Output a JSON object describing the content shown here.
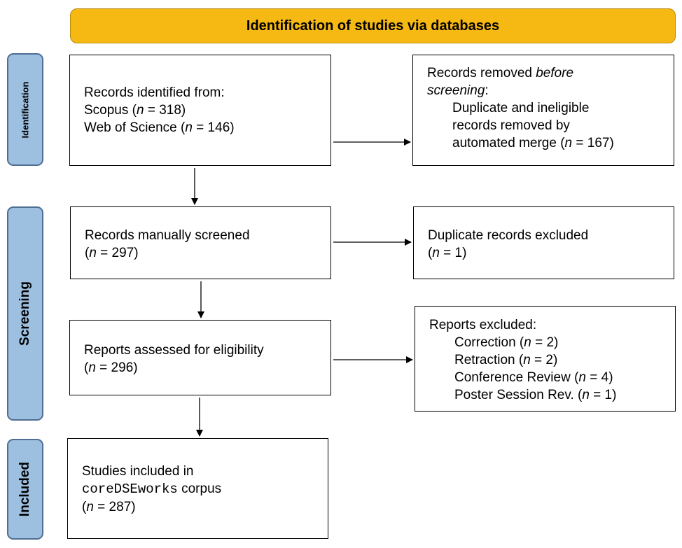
{
  "header": {
    "title": "Identification of studies via databases"
  },
  "phases": {
    "identification": "Identification",
    "screening": "Screening",
    "included": "Included"
  },
  "boxes": {
    "records_identified": {
      "title": "Records identified from:",
      "line1": "Scopus (",
      "line1_n": "n",
      "line1_rest": " = 318)",
      "line2": "Web of Science (",
      "line2_n": "n",
      "line2_rest": " = 146)"
    },
    "records_removed": {
      "line1_pre": "Records removed ",
      "line1_em": "before",
      "line2_em": "screening",
      "line2_post": ":",
      "line3": "Duplicate and ineligible",
      "line4": "records removed by",
      "line5_pre": "automated merge (",
      "line5_n": "n",
      "line5_post": " = 167)"
    },
    "manually_screened": {
      "title": "Records manually screened",
      "count_pre": "(",
      "count_n": "n",
      "count_post": " = 297)"
    },
    "duplicates_excluded": {
      "title": "Duplicate records excluded",
      "count_pre": "(",
      "count_n": "n",
      "count_post": " = 1)"
    },
    "assessed": {
      "title": "Reports assessed for eligibility",
      "count_pre": "(",
      "count_n": "n",
      "count_post": " = 296)"
    },
    "reports_excluded": {
      "title": "Reports excluded:",
      "items": [
        {
          "pre": "Correction (",
          "n": "n",
          "post": " = 2)"
        },
        {
          "pre": "Retraction (",
          "n": "n",
          "post": " = 2)"
        },
        {
          "pre": "Conference Review (",
          "n": "n",
          "post": " = 4)"
        },
        {
          "pre": "Poster Session Rev. (",
          "n": "n",
          "post": " = 1)"
        }
      ]
    },
    "included": {
      "line1": "Studies included in",
      "corpus": "coreDSEworks",
      "corpus_post": " corpus",
      "count_pre": "(",
      "count_n": "n",
      "count_post": " = 287)"
    }
  },
  "colors": {
    "header_fill": "#F6B812",
    "phase_fill": "#9DBFE0",
    "phase_border": "#4F6E94"
  }
}
